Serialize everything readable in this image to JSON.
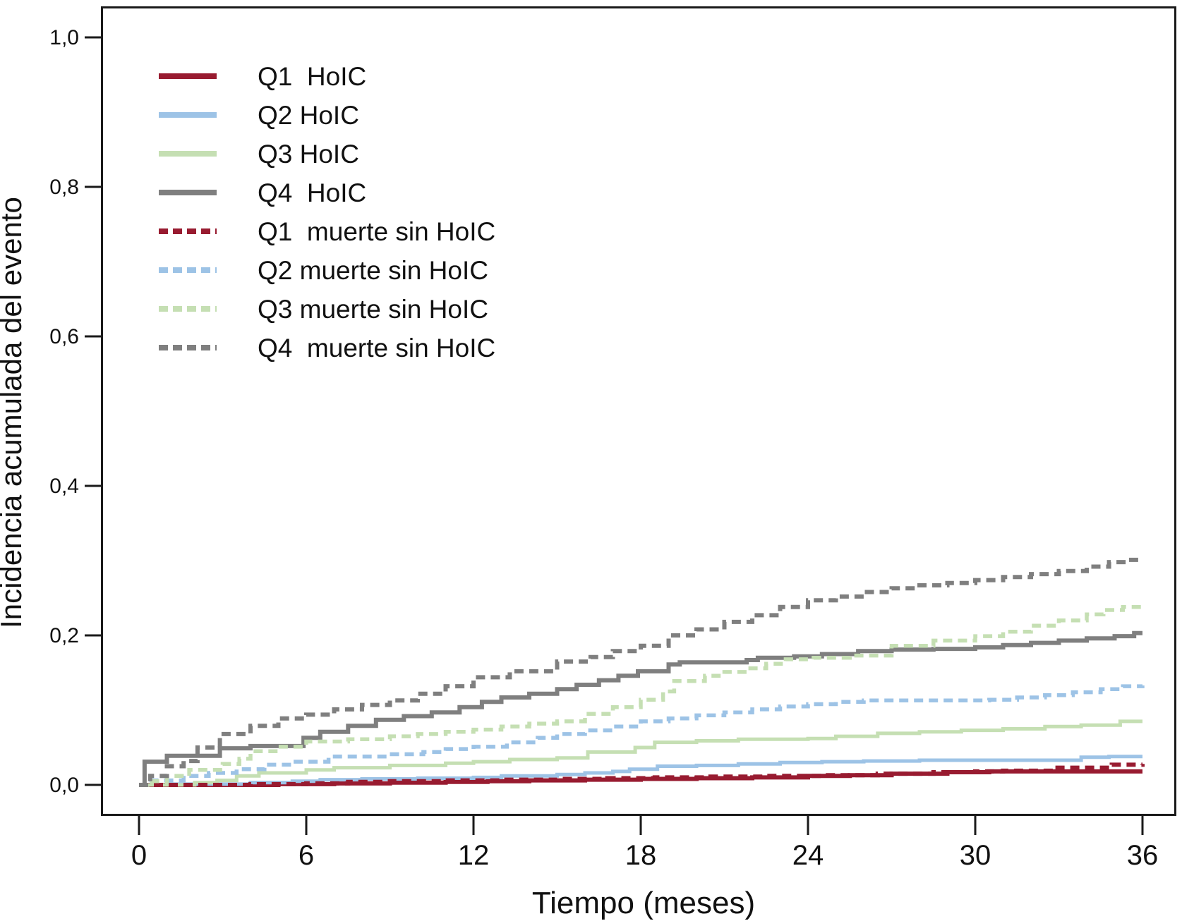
{
  "chart_data": {
    "type": "line",
    "subtype": "step-cumulative-incidence",
    "title": "",
    "xlabel": "Tiempo (meses)",
    "ylabel": "Incidencia acumulada del evento",
    "xlim": [
      0,
      36
    ],
    "ylim": [
      0,
      1
    ],
    "grid": false,
    "legend_position": "upper-left-inside",
    "xticks": [
      0,
      6,
      12,
      18,
      24,
      30,
      36
    ],
    "yticks": [
      {
        "v": 0.0,
        "label": "0,0"
      },
      {
        "v": 0.2,
        "label": "0,2"
      },
      {
        "v": 0.4,
        "label": "0,4"
      },
      {
        "v": 0.6,
        "label": "0,6"
      },
      {
        "v": 0.8,
        "label": "0,8"
      },
      {
        "v": 1.0,
        "label": "1,0"
      }
    ],
    "colors": {
      "q1": "#981b30",
      "q2": "#9dc3e6",
      "q3": "#c5dfb3",
      "q4": "#7f7f7f",
      "axis": "#1a1a1a",
      "text": "#111111"
    },
    "series": [
      {
        "name": "Q1  HoIC",
        "id": "q1-hoic",
        "color": "#981b30",
        "dashed": false,
        "width": 6,
        "points": [
          [
            0,
            0
          ],
          [
            5,
            0.001
          ],
          [
            7,
            0.002
          ],
          [
            9,
            0.003
          ],
          [
            11,
            0.004
          ],
          [
            12.5,
            0.005
          ],
          [
            14,
            0.006
          ],
          [
            16,
            0.007
          ],
          [
            18,
            0.008
          ],
          [
            20,
            0.009
          ],
          [
            22,
            0.01
          ],
          [
            24,
            0.012
          ],
          [
            25.5,
            0.013
          ],
          [
            27,
            0.015
          ],
          [
            29,
            0.017
          ],
          [
            30.5,
            0.018
          ],
          [
            36,
            0.018
          ]
        ]
      },
      {
        "name": "Q2 HoIC",
        "id": "q2-hoic",
        "color": "#9dc3e6",
        "dashed": false,
        "width": 5,
        "points": [
          [
            0,
            0
          ],
          [
            1,
            0.001
          ],
          [
            4,
            0.003
          ],
          [
            5.5,
            0.005
          ],
          [
            6.5,
            0.007
          ],
          [
            8,
            0.008
          ],
          [
            10,
            0.009
          ],
          [
            12,
            0.01
          ],
          [
            13,
            0.012
          ],
          [
            15,
            0.014
          ],
          [
            16,
            0.016
          ],
          [
            17,
            0.018
          ],
          [
            17.6,
            0.021
          ],
          [
            18.6,
            0.025
          ],
          [
            20,
            0.026
          ],
          [
            21.5,
            0.028
          ],
          [
            23,
            0.03
          ],
          [
            24.5,
            0.031
          ],
          [
            26,
            0.032
          ],
          [
            28,
            0.033
          ],
          [
            33.8,
            0.037
          ],
          [
            34.8,
            0.038
          ],
          [
            36,
            0.038
          ]
        ]
      },
      {
        "name": "Q3 HoIC",
        "id": "q3-hoic",
        "color": "#c5dfb3",
        "dashed": false,
        "width": 5,
        "points": [
          [
            0,
            0
          ],
          [
            2,
            0.003
          ],
          [
            2.8,
            0.006
          ],
          [
            3.5,
            0.012
          ],
          [
            4.3,
            0.016
          ],
          [
            6,
            0.02
          ],
          [
            7,
            0.023
          ],
          [
            9,
            0.026
          ],
          [
            11,
            0.029
          ],
          [
            12,
            0.031
          ],
          [
            13.3,
            0.034
          ],
          [
            15,
            0.036
          ],
          [
            16.1,
            0.044
          ],
          [
            17.8,
            0.05
          ],
          [
            18.5,
            0.057
          ],
          [
            20,
            0.059
          ],
          [
            21.5,
            0.061
          ],
          [
            24,
            0.062
          ],
          [
            25,
            0.065
          ],
          [
            26.5,
            0.069
          ],
          [
            28,
            0.071
          ],
          [
            29.5,
            0.073
          ],
          [
            31,
            0.075
          ],
          [
            32.5,
            0.078
          ],
          [
            33.8,
            0.08
          ],
          [
            35.2,
            0.085
          ],
          [
            36,
            0.085
          ]
        ]
      },
      {
        "name": "Q4  HoIC",
        "id": "q4-hoic",
        "color": "#7f7f7f",
        "dashed": false,
        "width": 6,
        "points": [
          [
            0,
            0
          ],
          [
            0.2,
            0.031
          ],
          [
            1,
            0.039
          ],
          [
            2.9,
            0.049
          ],
          [
            4,
            0.052
          ],
          [
            5.9,
            0.063
          ],
          [
            6.5,
            0.071
          ],
          [
            7.5,
            0.079
          ],
          [
            8.5,
            0.087
          ],
          [
            9.5,
            0.092
          ],
          [
            10.5,
            0.097
          ],
          [
            11.5,
            0.104
          ],
          [
            12.3,
            0.111
          ],
          [
            13,
            0.117
          ],
          [
            14,
            0.122
          ],
          [
            15,
            0.128
          ],
          [
            15.7,
            0.134
          ],
          [
            16.5,
            0.14
          ],
          [
            17.2,
            0.146
          ],
          [
            17.9,
            0.152
          ],
          [
            19,
            0.161
          ],
          [
            19.4,
            0.164
          ],
          [
            21.8,
            0.167
          ],
          [
            22.2,
            0.17
          ],
          [
            23.5,
            0.172
          ],
          [
            24.5,
            0.175
          ],
          [
            25.8,
            0.179
          ],
          [
            27,
            0.181
          ],
          [
            28.5,
            0.182
          ],
          [
            30,
            0.184
          ],
          [
            31,
            0.187
          ],
          [
            32,
            0.19
          ],
          [
            33,
            0.193
          ],
          [
            34,
            0.196
          ],
          [
            35,
            0.199
          ],
          [
            35.7,
            0.203
          ],
          [
            36,
            0.203
          ]
        ]
      },
      {
        "name": "Q1  muerte sin HoIC",
        "id": "q1-muerte",
        "color": "#981b30",
        "dashed": true,
        "width": 6,
        "points": [
          [
            0,
            0
          ],
          [
            4,
            0.001
          ],
          [
            6,
            0.002
          ],
          [
            7.5,
            0.004
          ],
          [
            9,
            0.005
          ],
          [
            11,
            0.006
          ],
          [
            13,
            0.007
          ],
          [
            15,
            0.008
          ],
          [
            16.8,
            0.009
          ],
          [
            18.5,
            0.01
          ],
          [
            20.5,
            0.011
          ],
          [
            22.5,
            0.012
          ],
          [
            24.5,
            0.013
          ],
          [
            26.5,
            0.015
          ],
          [
            28.5,
            0.017
          ],
          [
            30,
            0.018
          ],
          [
            31,
            0.019
          ],
          [
            32.8,
            0.023
          ],
          [
            34.9,
            0.027
          ],
          [
            36,
            0.028
          ]
        ]
      },
      {
        "name": "Q2 muerte sin HoIC",
        "id": "q2-muerte",
        "color": "#9dc3e6",
        "dashed": true,
        "width": 5.5,
        "points": [
          [
            0,
            0
          ],
          [
            0.3,
            0.006
          ],
          [
            1.6,
            0.012
          ],
          [
            2.5,
            0.016
          ],
          [
            3.5,
            0.021
          ],
          [
            4.5,
            0.027
          ],
          [
            5.5,
            0.031
          ],
          [
            6.8,
            0.038
          ],
          [
            9,
            0.041
          ],
          [
            10.2,
            0.044
          ],
          [
            11,
            0.048
          ],
          [
            12,
            0.051
          ],
          [
            13.2,
            0.057
          ],
          [
            14.3,
            0.063
          ],
          [
            15,
            0.068
          ],
          [
            16,
            0.073
          ],
          [
            17,
            0.078
          ],
          [
            18,
            0.085
          ],
          [
            19,
            0.089
          ],
          [
            20,
            0.093
          ],
          [
            21,
            0.097
          ],
          [
            22,
            0.101
          ],
          [
            23,
            0.105
          ],
          [
            24,
            0.108
          ],
          [
            25,
            0.111
          ],
          [
            26,
            0.113
          ],
          [
            30.5,
            0.114
          ],
          [
            31.5,
            0.117
          ],
          [
            32.5,
            0.12
          ],
          [
            33.5,
            0.124
          ],
          [
            34.5,
            0.128
          ],
          [
            35.3,
            0.132
          ],
          [
            36,
            0.133
          ]
        ]
      },
      {
        "name": "Q3 muerte sin HoIC",
        "id": "q3-muerte",
        "color": "#c5dfb3",
        "dashed": true,
        "width": 5.5,
        "points": [
          [
            0,
            0
          ],
          [
            0.3,
            0.005
          ],
          [
            1,
            0.012
          ],
          [
            1.8,
            0.02
          ],
          [
            3,
            0.028
          ],
          [
            3.6,
            0.035
          ],
          [
            4,
            0.045
          ],
          [
            5,
            0.051
          ],
          [
            6,
            0.058
          ],
          [
            7.5,
            0.061
          ],
          [
            9,
            0.065
          ],
          [
            10,
            0.068
          ],
          [
            11,
            0.071
          ],
          [
            12,
            0.074
          ],
          [
            13,
            0.078
          ],
          [
            14,
            0.082
          ],
          [
            15,
            0.085
          ],
          [
            16,
            0.095
          ],
          [
            17,
            0.104
          ],
          [
            18,
            0.114
          ],
          [
            18.8,
            0.125
          ],
          [
            19.2,
            0.139
          ],
          [
            20.3,
            0.146
          ],
          [
            21,
            0.151
          ],
          [
            21.8,
            0.156
          ],
          [
            22.5,
            0.162
          ],
          [
            23.2,
            0.168
          ],
          [
            24.2,
            0.17
          ],
          [
            25.5,
            0.173
          ],
          [
            27,
            0.186
          ],
          [
            28.5,
            0.193
          ],
          [
            30,
            0.199
          ],
          [
            31,
            0.205
          ],
          [
            32,
            0.213
          ],
          [
            33,
            0.22
          ],
          [
            34,
            0.228
          ],
          [
            34.6,
            0.234
          ],
          [
            35.3,
            0.238
          ],
          [
            36,
            0.239
          ]
        ]
      },
      {
        "name": "Q4  muerte sin HoIC",
        "id": "q4-muerte",
        "color": "#7f7f7f",
        "dashed": true,
        "width": 6,
        "points": [
          [
            0,
            0
          ],
          [
            0.4,
            0.012
          ],
          [
            1,
            0.025
          ],
          [
            1.6,
            0.032
          ],
          [
            2.1,
            0.05
          ],
          [
            2.9,
            0.068
          ],
          [
            4,
            0.079
          ],
          [
            5,
            0.089
          ],
          [
            6,
            0.094
          ],
          [
            7,
            0.101
          ],
          [
            8,
            0.107
          ],
          [
            9,
            0.113
          ],
          [
            10,
            0.122
          ],
          [
            11,
            0.132
          ],
          [
            12,
            0.144
          ],
          [
            13.3,
            0.152
          ],
          [
            15,
            0.165
          ],
          [
            16.2,
            0.171
          ],
          [
            17,
            0.179
          ],
          [
            18,
            0.186
          ],
          [
            19,
            0.2
          ],
          [
            20,
            0.208
          ],
          [
            21,
            0.218
          ],
          [
            22,
            0.227
          ],
          [
            23,
            0.238
          ],
          [
            24,
            0.247
          ],
          [
            25,
            0.252
          ],
          [
            26,
            0.258
          ],
          [
            27,
            0.263
          ],
          [
            28,
            0.267
          ],
          [
            29,
            0.27
          ],
          [
            30,
            0.274
          ],
          [
            31,
            0.278
          ],
          [
            32,
            0.282
          ],
          [
            33,
            0.286
          ],
          [
            34,
            0.292
          ],
          [
            34.8,
            0.298
          ],
          [
            35.4,
            0.301
          ],
          [
            36,
            0.302
          ]
        ]
      }
    ]
  },
  "legend": {
    "items": [
      {
        "label": "Q1  HoIC",
        "color": "#981b30",
        "dashed": false
      },
      {
        "label": "Q2 HoIC",
        "color": "#9dc3e6",
        "dashed": false
      },
      {
        "label": "Q3 HoIC",
        "color": "#c5dfb3",
        "dashed": false
      },
      {
        "label": "Q4  HoIC",
        "color": "#7f7f7f",
        "dashed": false
      },
      {
        "label": "Q1  muerte sin HoIC",
        "color": "#981b30",
        "dashed": true
      },
      {
        "label": "Q2 muerte sin HoIC",
        "color": "#9dc3e6",
        "dashed": true
      },
      {
        "label": "Q3 muerte sin HoIC",
        "color": "#c5dfb3",
        "dashed": true
      },
      {
        "label": "Q4  muerte sin HoIC",
        "color": "#7f7f7f",
        "dashed": true
      }
    ]
  }
}
